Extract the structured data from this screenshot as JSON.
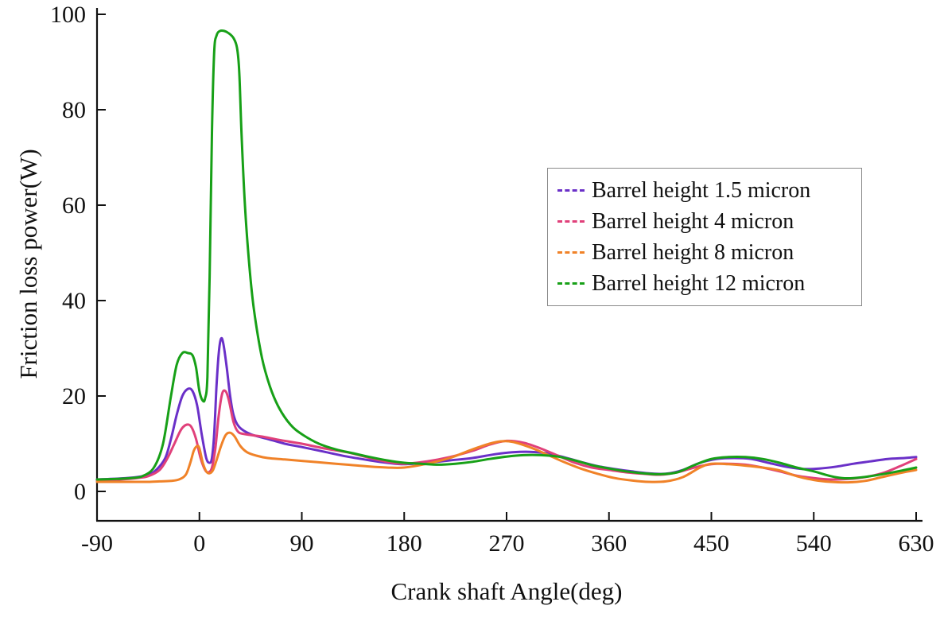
{
  "chart_data": {
    "type": "line",
    "title": "",
    "xlabel": "Crank shaft Angle(deg)",
    "ylabel": "Friction loss power(W)",
    "xlim": [
      -90,
      630
    ],
    "ylim": [
      0,
      100
    ],
    "xticks": [
      -90,
      0,
      90,
      180,
      270,
      360,
      450,
      540,
      630
    ],
    "yticks": [
      0,
      20,
      40,
      60,
      80,
      100
    ],
    "grid": false,
    "legend_position": "upper-right-inside",
    "axis_color": "#111111",
    "series": [
      {
        "name": "Barrel height 1.5 micron",
        "color": "#6a30c8",
        "points": [
          [
            -90,
            2.5
          ],
          [
            -70,
            2.7
          ],
          [
            -55,
            3.0
          ],
          [
            -45,
            3.5
          ],
          [
            -38,
            4.5
          ],
          [
            -30,
            7.0
          ],
          [
            -25,
            11.0
          ],
          [
            -20,
            16.0
          ],
          [
            -15,
            20.0
          ],
          [
            -10,
            21.5
          ],
          [
            -6,
            21.0
          ],
          [
            -2,
            18.0
          ],
          [
            2,
            12.0
          ],
          [
            6,
            7.0
          ],
          [
            9,
            6.0
          ],
          [
            11,
            7.0
          ],
          [
            13,
            12.0
          ],
          [
            15,
            22.0
          ],
          [
            17,
            29.0
          ],
          [
            19,
            32.0
          ],
          [
            21,
            31.0
          ],
          [
            24,
            26.0
          ],
          [
            27,
            20.0
          ],
          [
            30,
            16.0
          ],
          [
            35,
            13.5
          ],
          [
            45,
            12.0
          ],
          [
            60,
            11.0
          ],
          [
            75,
            10.0
          ],
          [
            90,
            9.3
          ],
          [
            110,
            8.3
          ],
          [
            130,
            7.3
          ],
          [
            150,
            6.5
          ],
          [
            165,
            6.0
          ],
          [
            180,
            5.7
          ],
          [
            200,
            6.0
          ],
          [
            220,
            6.5
          ],
          [
            240,
            7.0
          ],
          [
            260,
            7.8
          ],
          [
            275,
            8.2
          ],
          [
            290,
            8.3
          ],
          [
            305,
            8.0
          ],
          [
            320,
            7.2
          ],
          [
            335,
            6.2
          ],
          [
            350,
            5.3
          ],
          [
            365,
            4.7
          ],
          [
            380,
            4.2
          ],
          [
            395,
            3.8
          ],
          [
            410,
            3.7
          ],
          [
            425,
            4.5
          ],
          [
            440,
            6.0
          ],
          [
            455,
            6.8
          ],
          [
            470,
            7.0
          ],
          [
            485,
            6.8
          ],
          [
            500,
            6.0
          ],
          [
            515,
            5.2
          ],
          [
            530,
            4.7
          ],
          [
            545,
            4.8
          ],
          [
            560,
            5.2
          ],
          [
            575,
            5.8
          ],
          [
            590,
            6.3
          ],
          [
            605,
            6.8
          ],
          [
            620,
            7.0
          ],
          [
            630,
            7.2
          ]
        ]
      },
      {
        "name": "Barrel height 4 micron",
        "color": "#e0407a",
        "points": [
          [
            -90,
            2.3
          ],
          [
            -70,
            2.5
          ],
          [
            -55,
            2.8
          ],
          [
            -45,
            3.2
          ],
          [
            -35,
            4.5
          ],
          [
            -28,
            7.0
          ],
          [
            -22,
            10.0
          ],
          [
            -16,
            13.0
          ],
          [
            -11,
            14.0
          ],
          [
            -7,
            13.5
          ],
          [
            -3,
            11.0
          ],
          [
            1,
            7.0
          ],
          [
            5,
            4.5
          ],
          [
            8,
            4.0
          ],
          [
            11,
            5.0
          ],
          [
            14,
            9.0
          ],
          [
            17,
            16.0
          ],
          [
            20,
            20.5
          ],
          [
            23,
            21.0
          ],
          [
            26,
            19.0
          ],
          [
            30,
            14.5
          ],
          [
            34,
            12.5
          ],
          [
            40,
            12.0
          ],
          [
            55,
            11.5
          ],
          [
            70,
            10.8
          ],
          [
            90,
            10.0
          ],
          [
            110,
            9.0
          ],
          [
            130,
            8.2
          ],
          [
            150,
            7.0
          ],
          [
            165,
            6.2
          ],
          [
            180,
            5.8
          ],
          [
            200,
            6.3
          ],
          [
            220,
            7.2
          ],
          [
            240,
            8.5
          ],
          [
            255,
            9.8
          ],
          [
            270,
            10.6
          ],
          [
            285,
            10.2
          ],
          [
            300,
            9.0
          ],
          [
            315,
            7.5
          ],
          [
            330,
            6.0
          ],
          [
            345,
            5.0
          ],
          [
            360,
            4.5
          ],
          [
            375,
            4.0
          ],
          [
            390,
            3.7
          ],
          [
            405,
            3.5
          ],
          [
            420,
            4.0
          ],
          [
            435,
            5.0
          ],
          [
            450,
            5.7
          ],
          [
            465,
            5.8
          ],
          [
            480,
            5.6
          ],
          [
            495,
            5.0
          ],
          [
            510,
            4.2
          ],
          [
            525,
            3.3
          ],
          [
            540,
            2.8
          ],
          [
            555,
            2.5
          ],
          [
            570,
            2.6
          ],
          [
            585,
            3.0
          ],
          [
            600,
            3.8
          ],
          [
            615,
            5.2
          ],
          [
            630,
            6.8
          ]
        ]
      },
      {
        "name": "Barrel height 8 micron",
        "color": "#f08228",
        "points": [
          [
            -90,
            2.0
          ],
          [
            -70,
            2.0
          ],
          [
            -55,
            2.0
          ],
          [
            -45,
            2.0
          ],
          [
            -35,
            2.1
          ],
          [
            -25,
            2.2
          ],
          [
            -18,
            2.5
          ],
          [
            -12,
            3.5
          ],
          [
            -8,
            6.0
          ],
          [
            -5,
            8.5
          ],
          [
            -2,
            9.5
          ],
          [
            0,
            9.0
          ],
          [
            3,
            6.0
          ],
          [
            6,
            4.2
          ],
          [
            9,
            3.8
          ],
          [
            12,
            4.5
          ],
          [
            15,
            6.5
          ],
          [
            19,
            9.5
          ],
          [
            23,
            11.8
          ],
          [
            27,
            12.3
          ],
          [
            31,
            11.5
          ],
          [
            36,
            9.5
          ],
          [
            42,
            8.2
          ],
          [
            50,
            7.5
          ],
          [
            60,
            7.0
          ],
          [
            75,
            6.7
          ],
          [
            90,
            6.4
          ],
          [
            110,
            6.0
          ],
          [
            130,
            5.6
          ],
          [
            150,
            5.2
          ],
          [
            165,
            5.0
          ],
          [
            180,
            5.0
          ],
          [
            200,
            5.8
          ],
          [
            220,
            7.0
          ],
          [
            240,
            8.8
          ],
          [
            255,
            10.0
          ],
          [
            265,
            10.5
          ],
          [
            275,
            10.4
          ],
          [
            290,
            9.3
          ],
          [
            305,
            7.8
          ],
          [
            320,
            6.2
          ],
          [
            335,
            4.8
          ],
          [
            350,
            3.7
          ],
          [
            365,
            2.8
          ],
          [
            380,
            2.3
          ],
          [
            395,
            2.0
          ],
          [
            410,
            2.1
          ],
          [
            425,
            3.0
          ],
          [
            440,
            5.0
          ],
          [
            450,
            5.8
          ],
          [
            465,
            5.7
          ],
          [
            480,
            5.4
          ],
          [
            495,
            5.0
          ],
          [
            510,
            4.4
          ],
          [
            525,
            3.2
          ],
          [
            540,
            2.4
          ],
          [
            555,
            2.0
          ],
          [
            570,
            1.9
          ],
          [
            585,
            2.2
          ],
          [
            600,
            3.0
          ],
          [
            615,
            3.8
          ],
          [
            630,
            4.5
          ]
        ]
      },
      {
        "name": "Barrel height 12 micron",
        "color": "#17a017",
        "points": [
          [
            -90,
            2.5
          ],
          [
            -75,
            2.6
          ],
          [
            -60,
            2.8
          ],
          [
            -50,
            3.2
          ],
          [
            -40,
            5.0
          ],
          [
            -32,
            10.0
          ],
          [
            -25,
            20.0
          ],
          [
            -20,
            26.5
          ],
          [
            -15,
            29.0
          ],
          [
            -10,
            29.0
          ],
          [
            -6,
            28.5
          ],
          [
            -3,
            26.0
          ],
          [
            0,
            21.0
          ],
          [
            3,
            19.0
          ],
          [
            5,
            19.5
          ],
          [
            7,
            24.0
          ],
          [
            9,
            45.0
          ],
          [
            11,
            75.0
          ],
          [
            13,
            92.0
          ],
          [
            15,
            95.5
          ],
          [
            18,
            96.5
          ],
          [
            22,
            96.5
          ],
          [
            26,
            96.0
          ],
          [
            30,
            95.0
          ],
          [
            33,
            93.0
          ],
          [
            35,
            88.0
          ],
          [
            37,
            75.0
          ],
          [
            40,
            60.0
          ],
          [
            44,
            47.0
          ],
          [
            48,
            38.0
          ],
          [
            55,
            28.0
          ],
          [
            62,
            22.0
          ],
          [
            70,
            17.5
          ],
          [
            80,
            14.0
          ],
          [
            90,
            12.0
          ],
          [
            105,
            10.0
          ],
          [
            120,
            8.8
          ],
          [
            135,
            8.0
          ],
          [
            150,
            7.2
          ],
          [
            165,
            6.5
          ],
          [
            180,
            6.0
          ],
          [
            195,
            5.8
          ],
          [
            210,
            5.6
          ],
          [
            225,
            5.8
          ],
          [
            240,
            6.2
          ],
          [
            255,
            6.8
          ],
          [
            270,
            7.3
          ],
          [
            285,
            7.6
          ],
          [
            300,
            7.6
          ],
          [
            315,
            7.3
          ],
          [
            330,
            6.5
          ],
          [
            345,
            5.5
          ],
          [
            360,
            4.8
          ],
          [
            375,
            4.2
          ],
          [
            390,
            3.8
          ],
          [
            405,
            3.6
          ],
          [
            420,
            4.0
          ],
          [
            435,
            5.5
          ],
          [
            450,
            6.8
          ],
          [
            465,
            7.2
          ],
          [
            480,
            7.2
          ],
          [
            495,
            6.8
          ],
          [
            510,
            6.0
          ],
          [
            525,
            5.0
          ],
          [
            540,
            4.2
          ],
          [
            555,
            3.2
          ],
          [
            565,
            2.8
          ],
          [
            575,
            2.8
          ],
          [
            590,
            3.2
          ],
          [
            605,
            3.8
          ],
          [
            620,
            4.5
          ],
          [
            630,
            5.0
          ]
        ]
      }
    ],
    "legend_entries": [
      "Barrel height 1.5 micron",
      "Barrel height 4 micron",
      "Barrel height 8 micron",
      "Barrel height 12 micron"
    ]
  }
}
